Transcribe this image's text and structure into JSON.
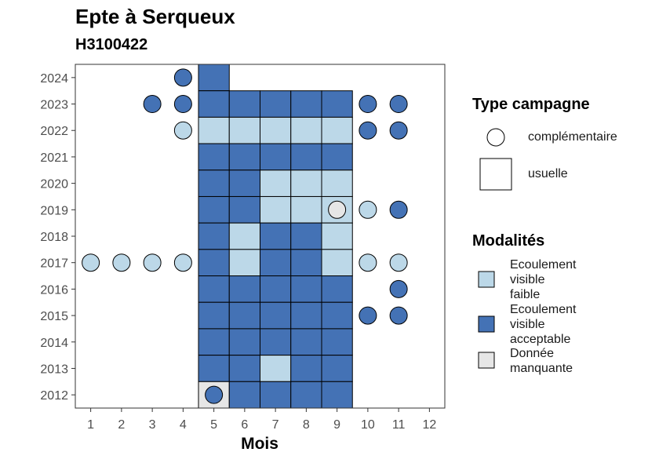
{
  "title": "Epte à Serqueux",
  "subtitle": "H3100422",
  "colors": {
    "faible": "#bcd8e8",
    "acceptable": "#4472b5",
    "manquante": "#e6e6e6"
  },
  "legend": {
    "type_title": "Type campagne",
    "type_items": [
      {
        "key": "complementaire",
        "label": "complémentaire",
        "shape": "circle"
      },
      {
        "key": "usuelle",
        "label": "usuelle",
        "shape": "square"
      }
    ],
    "mod_title": "Modalités",
    "mod_items": [
      {
        "key": "faible",
        "lines": [
          "Ecoulement",
          "visible",
          "faible"
        ]
      },
      {
        "key": "acceptable",
        "lines": [
          "Ecoulement",
          "visible",
          "acceptable"
        ]
      },
      {
        "key": "manquante",
        "lines": [
          "Donnée",
          "manquante"
        ]
      }
    ]
  },
  "chart_data": {
    "type": "heatmap",
    "xlabel": "Mois",
    "ylabel": "",
    "x_ticks": [
      1,
      2,
      3,
      4,
      5,
      6,
      7,
      8,
      9,
      10,
      11,
      12
    ],
    "y_ticks": [
      2012,
      2013,
      2014,
      2015,
      2016,
      2017,
      2018,
      2019,
      2020,
      2021,
      2022,
      2023,
      2024
    ],
    "xlim": [
      0.5,
      12.5
    ],
    "ylim": [
      2011.5,
      2024.5
    ],
    "usuelle": [
      {
        "year": 2024,
        "month": 5,
        "mod": "acceptable"
      },
      {
        "year": 2023,
        "month": 5,
        "mod": "acceptable"
      },
      {
        "year": 2023,
        "month": 6,
        "mod": "acceptable"
      },
      {
        "year": 2023,
        "month": 7,
        "mod": "acceptable"
      },
      {
        "year": 2023,
        "month": 8,
        "mod": "acceptable"
      },
      {
        "year": 2023,
        "month": 9,
        "mod": "acceptable"
      },
      {
        "year": 2022,
        "month": 5,
        "mod": "faible"
      },
      {
        "year": 2022,
        "month": 6,
        "mod": "faible"
      },
      {
        "year": 2022,
        "month": 7,
        "mod": "faible"
      },
      {
        "year": 2022,
        "month": 8,
        "mod": "faible"
      },
      {
        "year": 2022,
        "month": 9,
        "mod": "faible"
      },
      {
        "year": 2021,
        "month": 5,
        "mod": "acceptable"
      },
      {
        "year": 2021,
        "month": 6,
        "mod": "acceptable"
      },
      {
        "year": 2021,
        "month": 7,
        "mod": "acceptable"
      },
      {
        "year": 2021,
        "month": 8,
        "mod": "acceptable"
      },
      {
        "year": 2021,
        "month": 9,
        "mod": "acceptable"
      },
      {
        "year": 2020,
        "month": 5,
        "mod": "acceptable"
      },
      {
        "year": 2020,
        "month": 6,
        "mod": "acceptable"
      },
      {
        "year": 2020,
        "month": 7,
        "mod": "faible"
      },
      {
        "year": 2020,
        "month": 8,
        "mod": "faible"
      },
      {
        "year": 2020,
        "month": 9,
        "mod": "faible"
      },
      {
        "year": 2019,
        "month": 5,
        "mod": "acceptable"
      },
      {
        "year": 2019,
        "month": 6,
        "mod": "acceptable"
      },
      {
        "year": 2019,
        "month": 7,
        "mod": "faible"
      },
      {
        "year": 2019,
        "month": 8,
        "mod": "faible"
      },
      {
        "year": 2019,
        "month": 9,
        "mod": "faible"
      },
      {
        "year": 2018,
        "month": 5,
        "mod": "acceptable"
      },
      {
        "year": 2018,
        "month": 6,
        "mod": "faible"
      },
      {
        "year": 2018,
        "month": 7,
        "mod": "acceptable"
      },
      {
        "year": 2018,
        "month": 8,
        "mod": "acceptable"
      },
      {
        "year": 2018,
        "month": 9,
        "mod": "faible"
      },
      {
        "year": 2017,
        "month": 5,
        "mod": "acceptable"
      },
      {
        "year": 2017,
        "month": 6,
        "mod": "faible"
      },
      {
        "year": 2017,
        "month": 7,
        "mod": "acceptable"
      },
      {
        "year": 2017,
        "month": 8,
        "mod": "acceptable"
      },
      {
        "year": 2017,
        "month": 9,
        "mod": "faible"
      },
      {
        "year": 2016,
        "month": 5,
        "mod": "acceptable"
      },
      {
        "year": 2016,
        "month": 6,
        "mod": "acceptable"
      },
      {
        "year": 2016,
        "month": 7,
        "mod": "acceptable"
      },
      {
        "year": 2016,
        "month": 8,
        "mod": "acceptable"
      },
      {
        "year": 2016,
        "month": 9,
        "mod": "acceptable"
      },
      {
        "year": 2015,
        "month": 5,
        "mod": "acceptable"
      },
      {
        "year": 2015,
        "month": 6,
        "mod": "acceptable"
      },
      {
        "year": 2015,
        "month": 7,
        "mod": "acceptable"
      },
      {
        "year": 2015,
        "month": 8,
        "mod": "acceptable"
      },
      {
        "year": 2015,
        "month": 9,
        "mod": "acceptable"
      },
      {
        "year": 2014,
        "month": 5,
        "mod": "acceptable"
      },
      {
        "year": 2014,
        "month": 6,
        "mod": "acceptable"
      },
      {
        "year": 2014,
        "month": 7,
        "mod": "acceptable"
      },
      {
        "year": 2014,
        "month": 8,
        "mod": "acceptable"
      },
      {
        "year": 2014,
        "month": 9,
        "mod": "acceptable"
      },
      {
        "year": 2013,
        "month": 5,
        "mod": "acceptable"
      },
      {
        "year": 2013,
        "month": 6,
        "mod": "acceptable"
      },
      {
        "year": 2013,
        "month": 7,
        "mod": "faible"
      },
      {
        "year": 2013,
        "month": 8,
        "mod": "acceptable"
      },
      {
        "year": 2013,
        "month": 9,
        "mod": "acceptable"
      },
      {
        "year": 2012,
        "month": 5,
        "mod": "manquante"
      },
      {
        "year": 2012,
        "month": 6,
        "mod": "acceptable"
      },
      {
        "year": 2012,
        "month": 7,
        "mod": "acceptable"
      },
      {
        "year": 2012,
        "month": 8,
        "mod": "acceptable"
      },
      {
        "year": 2012,
        "month": 9,
        "mod": "acceptable"
      }
    ],
    "complementaire": [
      {
        "year": 2024,
        "month": 4,
        "mod": "acceptable"
      },
      {
        "year": 2023,
        "month": 3,
        "mod": "acceptable"
      },
      {
        "year": 2023,
        "month": 4,
        "mod": "acceptable"
      },
      {
        "year": 2023,
        "month": 10,
        "mod": "acceptable"
      },
      {
        "year": 2023,
        "month": 11,
        "mod": "acceptable"
      },
      {
        "year": 2022,
        "month": 4,
        "mod": "faible"
      },
      {
        "year": 2022,
        "month": 10,
        "mod": "acceptable"
      },
      {
        "year": 2022,
        "month": 11,
        "mod": "acceptable"
      },
      {
        "year": 2019,
        "month": 9,
        "mod": "manquante"
      },
      {
        "year": 2019,
        "month": 10,
        "mod": "faible"
      },
      {
        "year": 2019,
        "month": 11,
        "mod": "acceptable"
      },
      {
        "year": 2017,
        "month": 1,
        "mod": "faible"
      },
      {
        "year": 2017,
        "month": 2,
        "mod": "faible"
      },
      {
        "year": 2017,
        "month": 3,
        "mod": "faible"
      },
      {
        "year": 2017,
        "month": 4,
        "mod": "faible"
      },
      {
        "year": 2017,
        "month": 10,
        "mod": "faible"
      },
      {
        "year": 2017,
        "month": 11,
        "mod": "faible"
      },
      {
        "year": 2016,
        "month": 11,
        "mod": "acceptable"
      },
      {
        "year": 2015,
        "month": 10,
        "mod": "acceptable"
      },
      {
        "year": 2015,
        "month": 11,
        "mod": "acceptable"
      },
      {
        "year": 2012,
        "month": 5,
        "mod": "acceptable"
      }
    ]
  }
}
